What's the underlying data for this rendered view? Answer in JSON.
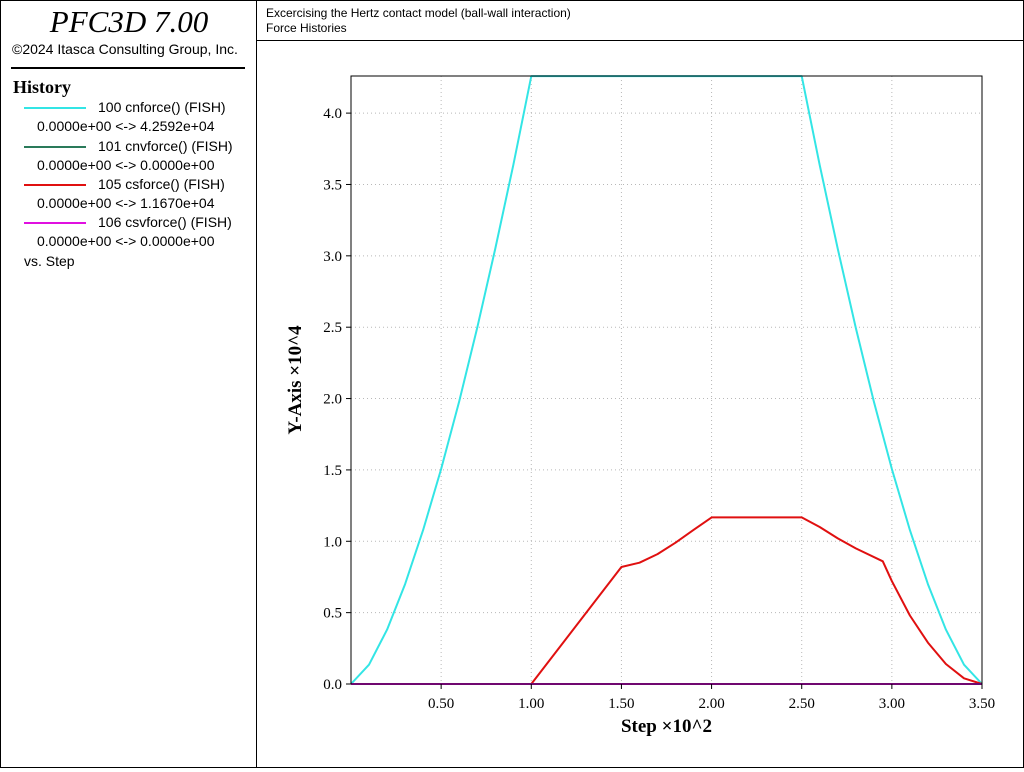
{
  "app": {
    "title": "PFC3D 7.00",
    "copyright": "©2024 Itasca Consulting Group, Inc."
  },
  "header": {
    "line1": "Excercising the Hertz contact model (ball-wall interaction)",
    "line2": "Force Histories"
  },
  "legend": {
    "heading": "History",
    "items": [
      {
        "label": "100 cnforce() (FISH)",
        "range": "0.0000e+00 <->  4.2592e+04",
        "color": "#33e5e5"
      },
      {
        "label": "101 cnvforce() (FISH)",
        "range": "0.0000e+00 <->  0.0000e+00",
        "color": "#2a7a5a"
      },
      {
        "label": "105 csforce() (FISH)",
        "range": "0.0000e+00 <->  1.1670e+04",
        "color": "#e01010"
      },
      {
        "label": "106 csvforce() (FISH)",
        "range": "0.0000e+00 <->  0.0000e+00",
        "color": "#e010e0"
      }
    ],
    "vs": "vs. Step"
  },
  "chart_data": {
    "type": "line",
    "xlabel": "Step  ×10^2",
    "ylabel": "Y-Axis  ×10^4",
    "xlim": [
      0,
      3.5
    ],
    "ylim": [
      0,
      4.26
    ],
    "x_ticks": [
      0.5,
      1.0,
      1.5,
      2.0,
      2.5,
      3.0,
      3.5
    ],
    "x_tick_labels": [
      "0.50",
      "1.00",
      "1.50",
      "2.00",
      "2.50",
      "3.00",
      "3.50"
    ],
    "y_ticks": [
      0,
      0.5,
      1.0,
      1.5,
      2.0,
      2.5,
      3.0,
      3.5,
      4.0
    ],
    "y_tick_labels": [
      "0.0",
      "0.5",
      "1.0",
      "1.5",
      "2.0",
      "2.5",
      "3.0",
      "3.5",
      "4.0"
    ],
    "grid": true,
    "series": [
      {
        "name": "100 cnforce() (FISH)",
        "color": "#33e5e5",
        "x": [
          0,
          0.1,
          0.2,
          0.3,
          0.4,
          0.5,
          0.6,
          0.7,
          0.8,
          0.9,
          1.0,
          2.5,
          2.6,
          2.7,
          2.8,
          2.9,
          3.0,
          3.1,
          3.2,
          3.3,
          3.4,
          3.5
        ],
        "y": [
          0,
          0.135,
          0.381,
          0.7,
          1.078,
          1.506,
          1.98,
          2.495,
          3.048,
          3.636,
          4.259,
          4.259,
          3.636,
          3.048,
          2.495,
          1.98,
          1.506,
          1.078,
          0.7,
          0.381,
          0.135,
          0
        ]
      },
      {
        "name": "101 cnvforce() (FISH)",
        "color": "#2a7a5a",
        "x": [
          0,
          3.5
        ],
        "y": [
          0,
          0
        ]
      },
      {
        "name": "105 csforce() (FISH)",
        "color": "#e01010",
        "x": [
          0,
          1.0,
          1.5,
          1.6,
          1.7,
          1.8,
          1.9,
          2.0,
          2.5,
          2.6,
          2.7,
          2.8,
          2.95,
          3.0,
          3.1,
          3.2,
          3.3,
          3.4,
          3.5
        ],
        "y": [
          0,
          0,
          0.82,
          0.85,
          0.91,
          0.99,
          1.08,
          1.167,
          1.167,
          1.1,
          1.02,
          0.95,
          0.86,
          0.72,
          0.48,
          0.29,
          0.14,
          0.04,
          0
        ]
      },
      {
        "name": "106 csvforce() (FISH)",
        "color": "#e010e0",
        "x": [
          0,
          3.5
        ],
        "y": [
          0,
          0
        ]
      }
    ]
  }
}
